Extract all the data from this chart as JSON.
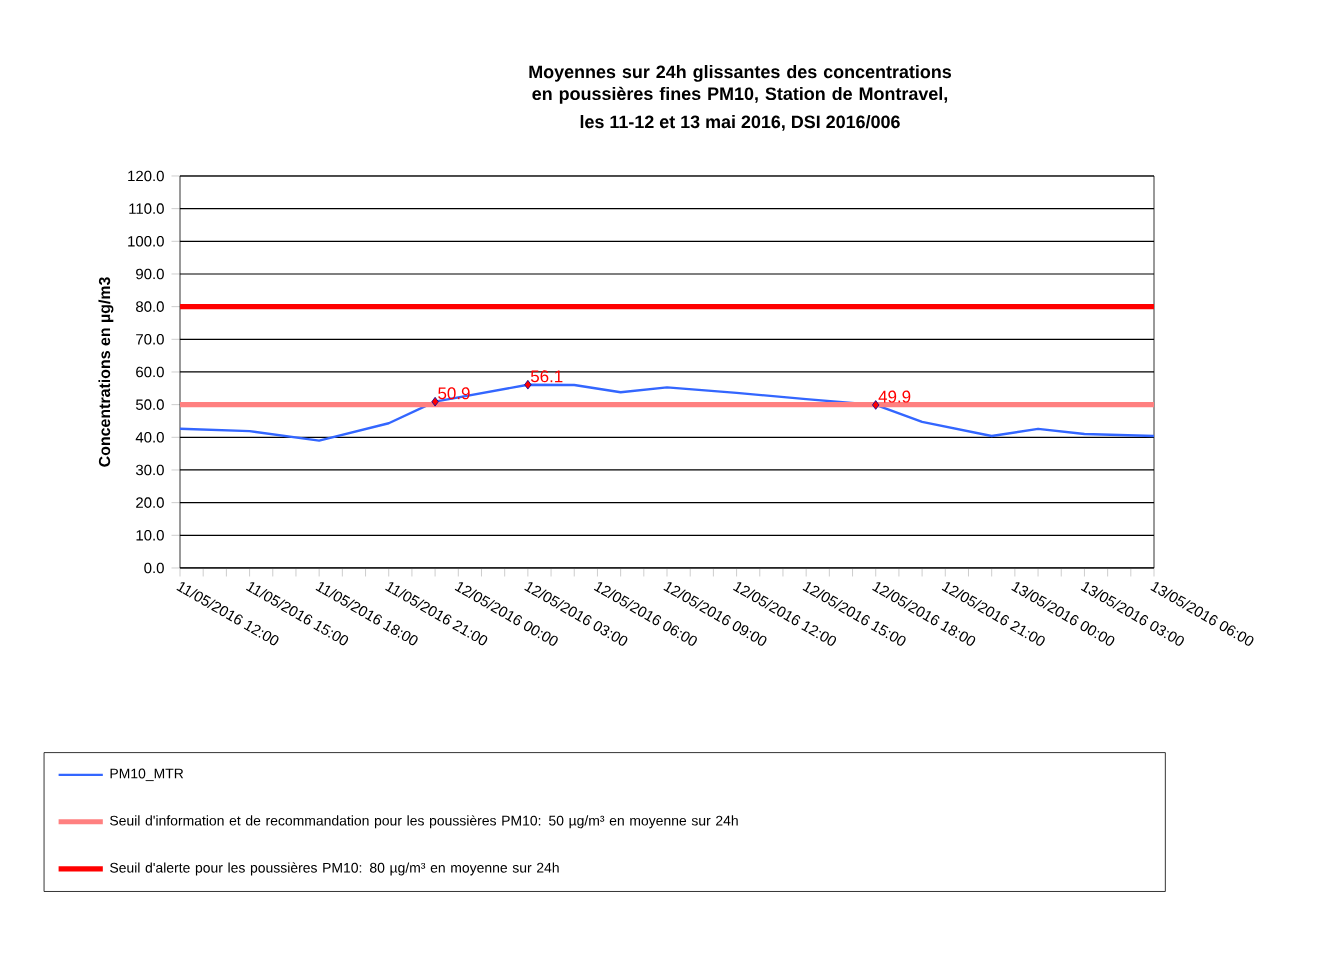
{
  "chart_data": {
    "type": "line",
    "title": "Moyennes sur 24h glissantes des concentrations en poussières fines PM10, Station de Montravel,",
    "subtitle": "les 11-12 et 13 mai 2016, DSI 2016/006",
    "ylabel": "Concentrations en µg/m3",
    "x": [
      "2016-05-11T12:00",
      "2016-05-11T15:00",
      "2016-05-11T18:00",
      "2016-05-11T21:00",
      "2016-05-11T23:00",
      "2016-05-12T01:00",
      "2016-05-12T03:00",
      "2016-05-12T05:00",
      "2016-05-12T07:00",
      "2016-05-12T09:00",
      "2016-05-12T12:00",
      "2016-05-12T15:00",
      "2016-05-12T18:00",
      "2016-05-12T20:00",
      "2016-05-12T23:00",
      "2016-05-13T01:00",
      "2016-05-13T03:00",
      "2016-05-13T06:00"
    ],
    "series": [
      {
        "name": "PM10_MTR",
        "color": "#3366ff",
        "values": [
          42.6,
          41.9,
          39.0,
          44.3,
          50.9,
          53.5,
          56.1,
          56.0,
          53.8,
          55.3,
          53.6,
          51.7,
          49.9,
          44.7,
          40.4,
          42.6,
          41.0,
          40.4
        ]
      }
    ],
    "xlim": [
      "2016-05-11T12:00",
      "2016-05-13T06:00"
    ],
    "xticks": [
      {
        "value": "2016-05-11T12:00",
        "label": "11/05/2016 12:00"
      },
      {
        "value": "2016-05-11T13:00",
        "label": null
      },
      {
        "value": "2016-05-11T14:00",
        "label": null
      },
      {
        "value": "2016-05-11T15:00",
        "label": "11/05/2016 15:00"
      },
      {
        "value": "2016-05-11T16:00",
        "label": null
      },
      {
        "value": "2016-05-11T17:00",
        "label": null
      },
      {
        "value": "2016-05-11T18:00",
        "label": "11/05/2016 18:00"
      },
      {
        "value": "2016-05-11T19:00",
        "label": null
      },
      {
        "value": "2016-05-11T20:00",
        "label": null
      },
      {
        "value": "2016-05-11T21:00",
        "label": "11/05/2016 21:00"
      },
      {
        "value": "2016-05-11T22:00",
        "label": null
      },
      {
        "value": "2016-05-11T23:00",
        "label": null
      },
      {
        "value": "2016-05-12T00:00",
        "label": "12/05/2016 00:00"
      },
      {
        "value": "2016-05-12T01:00",
        "label": null
      },
      {
        "value": "2016-05-12T02:00",
        "label": null
      },
      {
        "value": "2016-05-12T03:00",
        "label": "12/05/2016 03:00"
      },
      {
        "value": "2016-05-12T04:00",
        "label": null
      },
      {
        "value": "2016-05-12T05:00",
        "label": null
      },
      {
        "value": "2016-05-12T06:00",
        "label": "12/05/2016 06:00"
      },
      {
        "value": "2016-05-12T07:00",
        "label": null
      },
      {
        "value": "2016-05-12T08:00",
        "label": null
      },
      {
        "value": "2016-05-12T09:00",
        "label": "12/05/2016 09:00"
      },
      {
        "value": "2016-05-12T10:00",
        "label": null
      },
      {
        "value": "2016-05-12T11:00",
        "label": null
      },
      {
        "value": "2016-05-12T12:00",
        "label": "12/05/2016 12:00"
      },
      {
        "value": "2016-05-12T13:00",
        "label": null
      },
      {
        "value": "2016-05-12T14:00",
        "label": null
      },
      {
        "value": "2016-05-12T15:00",
        "label": "12/05/2016 15:00"
      },
      {
        "value": "2016-05-12T16:00",
        "label": null
      },
      {
        "value": "2016-05-12T17:00",
        "label": null
      },
      {
        "value": "2016-05-12T18:00",
        "label": "12/05/2016 18:00"
      },
      {
        "value": "2016-05-12T19:00",
        "label": null
      },
      {
        "value": "2016-05-12T20:00",
        "label": null
      },
      {
        "value": "2016-05-12T21:00",
        "label": "12/05/2016 21:00"
      },
      {
        "value": "2016-05-12T22:00",
        "label": null
      },
      {
        "value": "2016-05-12T23:00",
        "label": null
      },
      {
        "value": "2016-05-13T00:00",
        "label": "13/05/2016 00:00"
      },
      {
        "value": "2016-05-13T01:00",
        "label": null
      },
      {
        "value": "2016-05-13T02:00",
        "label": null
      },
      {
        "value": "2016-05-13T03:00",
        "label": "13/05/2016 03:00"
      },
      {
        "value": "2016-05-13T04:00",
        "label": null
      },
      {
        "value": "2016-05-13T05:00",
        "label": null
      },
      {
        "value": "2016-05-13T06:00",
        "label": "13/05/2016 06:00"
      }
    ],
    "ylim": [
      0,
      120
    ],
    "yticks": [
      {
        "value": 0,
        "label": "0.0"
      },
      {
        "value": 10,
        "label": "10.0"
      },
      {
        "value": 20,
        "label": "20.0"
      },
      {
        "value": 30,
        "label": "30.0"
      },
      {
        "value": 40,
        "label": "40.0"
      },
      {
        "value": 50,
        "label": "50.0"
      },
      {
        "value": 60,
        "label": "60.0"
      },
      {
        "value": 70,
        "label": "70.0"
      },
      {
        "value": 80,
        "label": "80.0"
      },
      {
        "value": 90,
        "label": "90.0"
      },
      {
        "value": 100,
        "label": "100.0"
      },
      {
        "value": 110,
        "label": "110.0"
      },
      {
        "value": 120,
        "label": "120.0"
      }
    ],
    "ref_lines": [
      {
        "axis": "y",
        "value": 50,
        "label": "Seuil d'information et de recommandation pour les poussières PM10: 50 µg/m³ en moyenne sur 24h",
        "color": "#ff8080"
      },
      {
        "axis": "y",
        "value": 80,
        "label": "Seuil d'alerte pour les poussières PM10: 80 µg/m³ en moyenne sur 24h",
        "color": "#ff0000"
      }
    ],
    "annotations": [
      {
        "text": "50.9",
        "x": "2016-05-11T23:00",
        "y": 50.9
      },
      {
        "text": "56.1",
        "x": "2016-05-12T03:00",
        "y": 56.1
      },
      {
        "text": "49.9",
        "x": "2016-05-12T18:00",
        "y": 49.9
      }
    ],
    "grid": "y",
    "legend": "bottom",
    "marker": "none",
    "line_style": "solid"
  }
}
